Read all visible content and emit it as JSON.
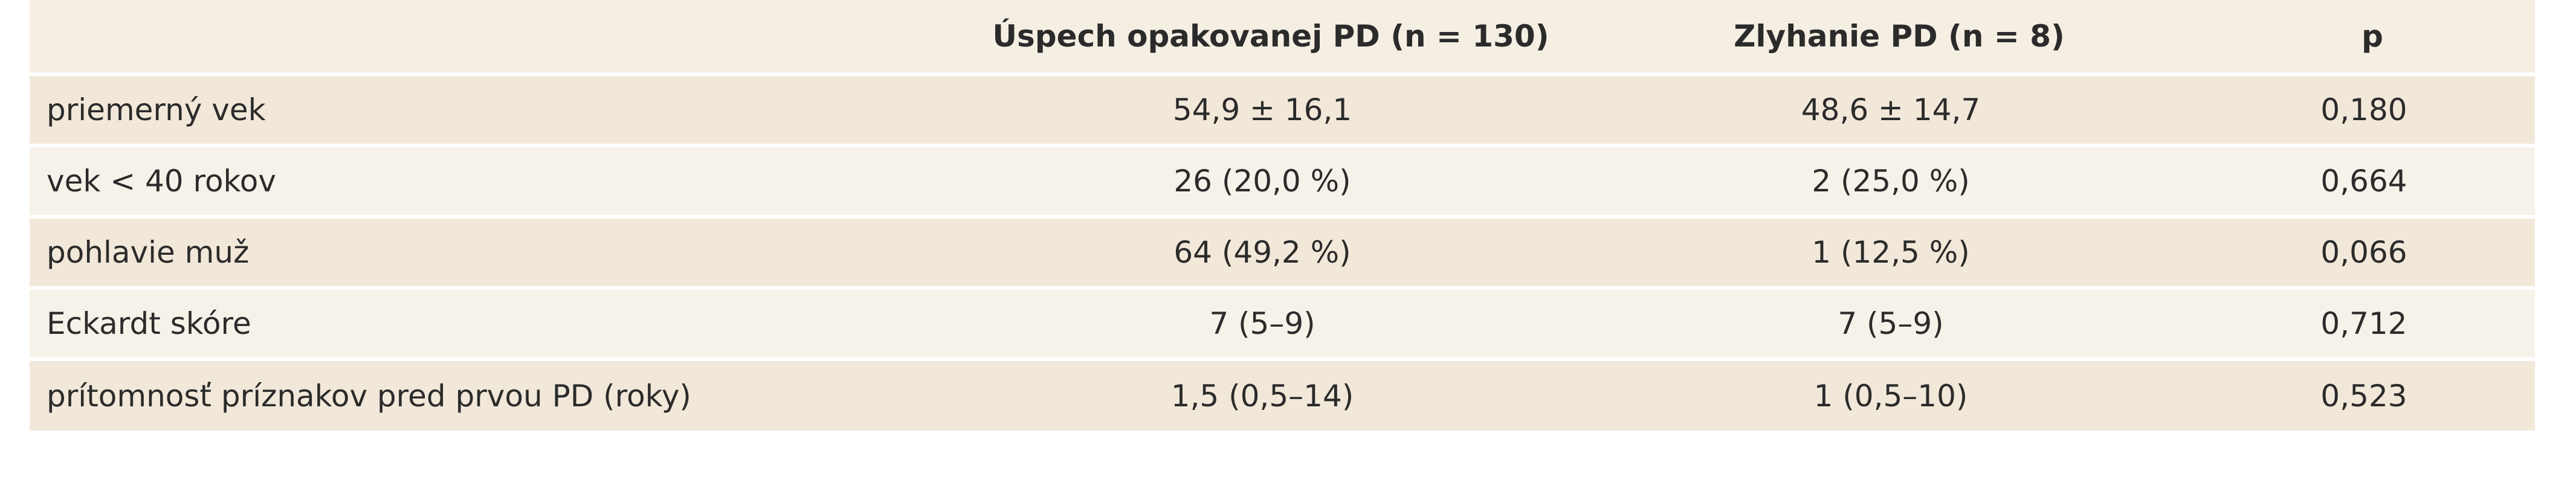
{
  "table": {
    "header": [
      "Úspech opakovanej PD (n = 130)",
      "Zlyhanie PD (n = 8)",
      "p"
    ],
    "rows": [
      [
        "priemerný vek",
        "54,9 ± 16,1",
        "48,6 ± 14,7",
        "0,180"
      ],
      [
        "vek < 40 rokov",
        "26 (20,0 %)",
        "2 (25,0 %)",
        "0,664"
      ],
      [
        "pohlavie muž",
        "64 (49,2 %)",
        "1 (12,5 %)",
        "0,066"
      ],
      [
        "Eckardt skóre",
        "7 (5–9)",
        "7 (5–9)",
        "0,712"
      ],
      [
        "prítomnosť príznakov pred prvou PD (roky)",
        "1,5 (0,5–14)",
        "1 (0,5–10)",
        "0,523"
      ]
    ]
  }
}
